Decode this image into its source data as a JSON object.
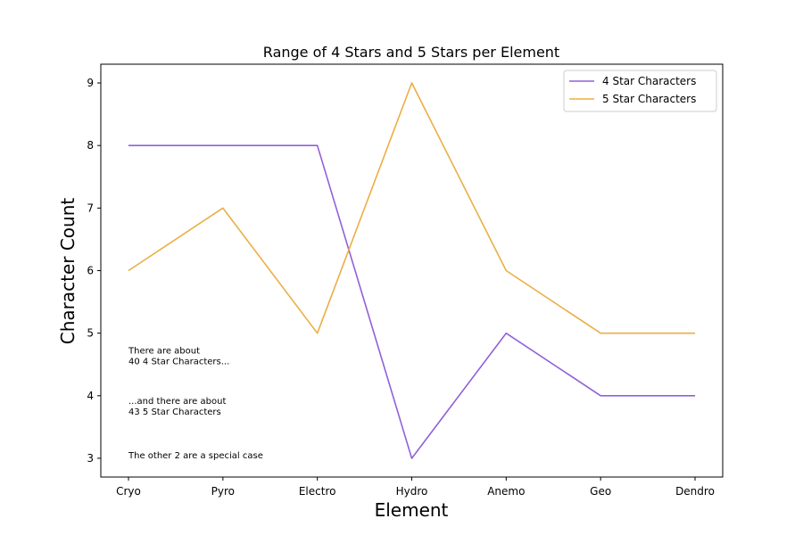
{
  "chart_data": {
    "type": "line",
    "title": "Range of 4 Stars and 5 Stars per Element",
    "xlabel": "Element",
    "ylabel": "Character Count",
    "categories": [
      "Cryo",
      "Pyro",
      "Electro",
      "Hydro",
      "Anemo",
      "Geo",
      "Dendro"
    ],
    "ylim": [
      2.7,
      9.3
    ],
    "yticks": [
      3,
      4,
      5,
      6,
      7,
      8,
      9
    ],
    "series": [
      {
        "name": "4 Star Characters",
        "color": "#9160d9",
        "values": [
          8,
          8,
          8,
          3,
          5,
          4,
          4
        ]
      },
      {
        "name": "5 Star Characters",
        "color": "#ebae45",
        "values": [
          6,
          7,
          5,
          9,
          6,
          5,
          5
        ]
      }
    ],
    "legend_position": "top-right",
    "grid": false,
    "annotations": [
      {
        "lines": [
          "There are about",
          "40 4 Star Characters..."
        ],
        "category": "Cryo",
        "y": 4.5
      },
      {
        "lines": [
          "...and there are about",
          "43 5 Star Characters"
        ],
        "category": "Cryo",
        "y": 3.7
      },
      {
        "lines": [
          "The other 2 are a special case"
        ],
        "category": "Cryo",
        "y": 3.0
      }
    ]
  }
}
